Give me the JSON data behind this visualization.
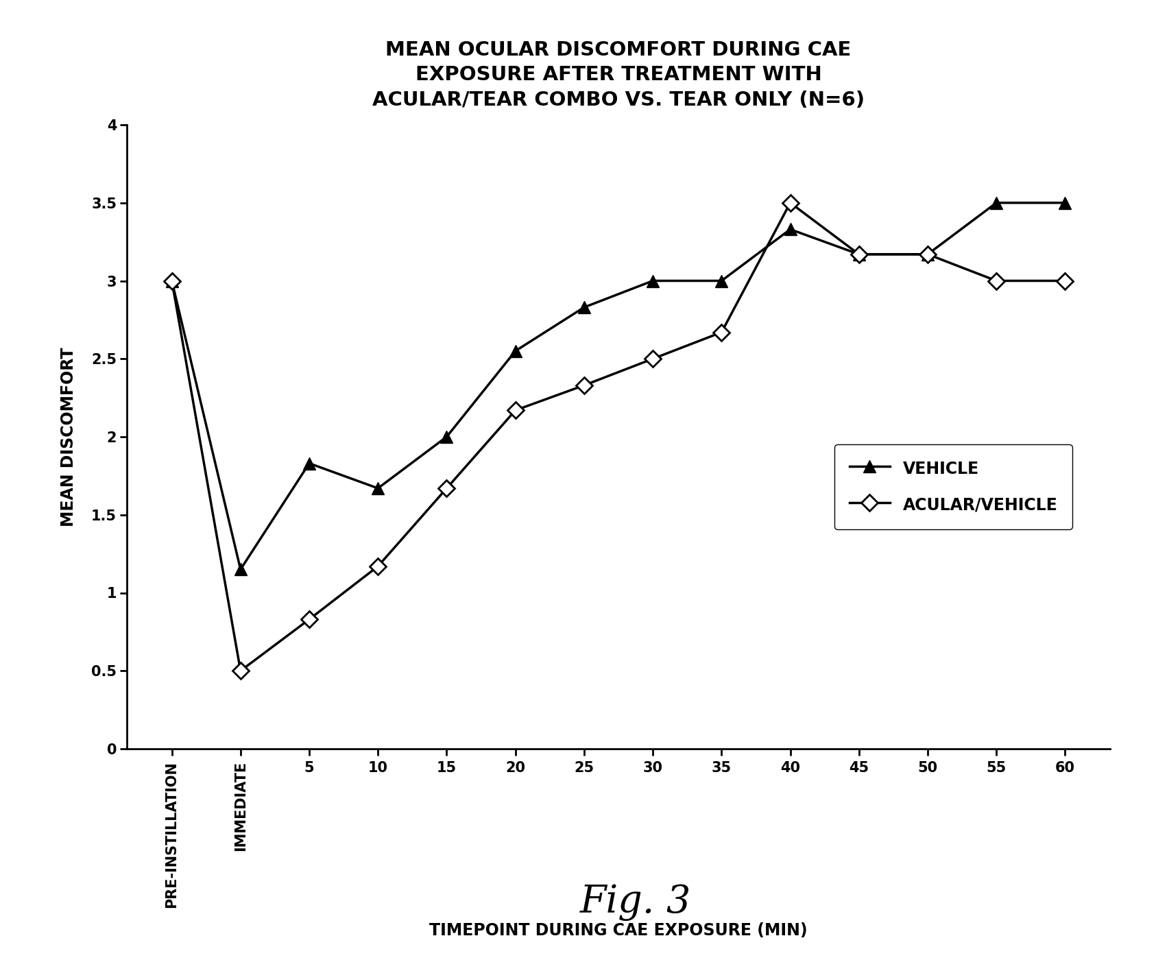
{
  "title": "MEAN OCULAR DISCOMFORT DURING CAE\nEXPOSURE AFTER TREATMENT WITH\nACULAR/TEAR COMBO VS. TEAR ONLY (N=6)",
  "xlabel": "TIMEPOINT DURING CAE EXPOSURE (MIN)",
  "ylabel": "MEAN DISCOMFORT",
  "fig_label": "Fig. 3",
  "x_positions": [
    0,
    1,
    2,
    3,
    4,
    5,
    6,
    7,
    8,
    9,
    10,
    11,
    12,
    13
  ],
  "x_tick_labels": [
    "PRE-INSTILLATION",
    "IMMEDIATE",
    "5",
    "10",
    "15",
    "20",
    "25",
    "30",
    "35",
    "40",
    "45",
    "50",
    "55",
    "60"
  ],
  "vehicle_y": [
    3.0,
    1.15,
    1.83,
    1.67,
    2.0,
    2.55,
    2.83,
    3.0,
    3.0,
    3.33,
    3.17,
    3.17,
    3.5,
    3.5
  ],
  "acular_y": [
    3.0,
    0.5,
    0.83,
    1.17,
    1.67,
    2.17,
    2.33,
    2.5,
    2.67,
    3.5,
    3.17,
    3.17,
    3.0,
    3.0
  ],
  "ylim": [
    0,
    4
  ],
  "ytick_values": [
    0,
    0.5,
    1.0,
    1.5,
    2.0,
    2.5,
    3.0,
    3.5,
    4.0
  ],
  "ytick_labels": [
    "0",
    "0.5",
    "1",
    "1.5",
    "2",
    "2.5",
    "3",
    "3.5",
    "4"
  ],
  "vehicle_label": "VEHICLE",
  "acular_label": "ACULAR/VEHICLE",
  "line_color": "#000000",
  "bg_color": "#ffffff",
  "title_fontsize": 21,
  "axis_label_fontsize": 17,
  "tick_label_fontsize": 15,
  "legend_fontsize": 17,
  "fig_label_fontsize": 40
}
